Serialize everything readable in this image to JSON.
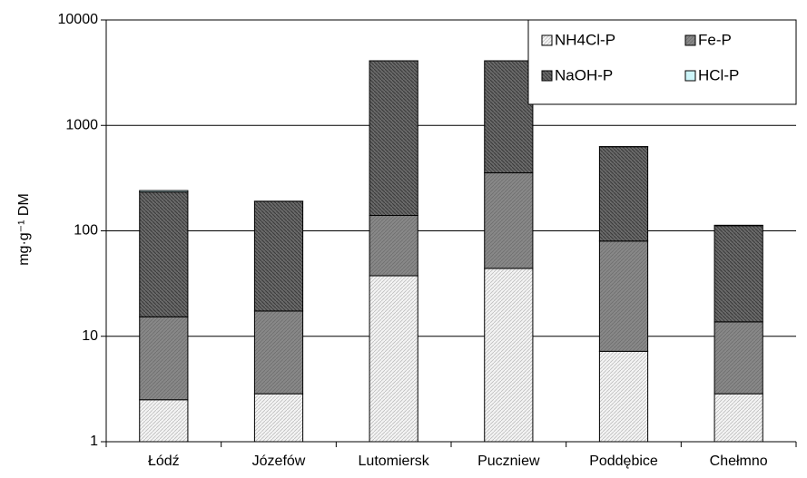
{
  "chart_data": {
    "type": "bar",
    "stacked": true,
    "yscale": "log",
    "ylim": [
      1,
      10000
    ],
    "ylabel": "mg·g⁻¹ DM",
    "yticks": [
      "1",
      "10",
      "100",
      "1000",
      "10000"
    ],
    "categories": [
      "Łódź",
      "Józefów",
      "Lutomiersk",
      "Puczniew",
      "Poddębice",
      "Chełmno"
    ],
    "grid": true,
    "legend_position": "top-right",
    "series": [
      {
        "name": "NH4Cl-P",
        "values": [
          2.5,
          2.85,
          37.5,
          44,
          7.2,
          2.85
        ]
      },
      {
        "name": "Fe-P",
        "values": [
          12.8,
          14.5,
          102.5,
          311,
          72.8,
          10.85
        ]
      },
      {
        "name": "NaOH-P",
        "values": [
          218,
          173,
          3960,
          3745,
          548,
          98.3
        ]
      },
      {
        "name": "HCl-P",
        "values": [
          7.7,
          0.65,
          1,
          0,
          1,
          1
        ]
      }
    ],
    "colors": {
      "NH4Cl-P": "#ececec",
      "Fe-P": "#868686",
      "NaOH-P": "#5a5a5a",
      "HCl-P": "#cdf5f9",
      "gridline": "#000000",
      "axis": "#000000"
    }
  }
}
